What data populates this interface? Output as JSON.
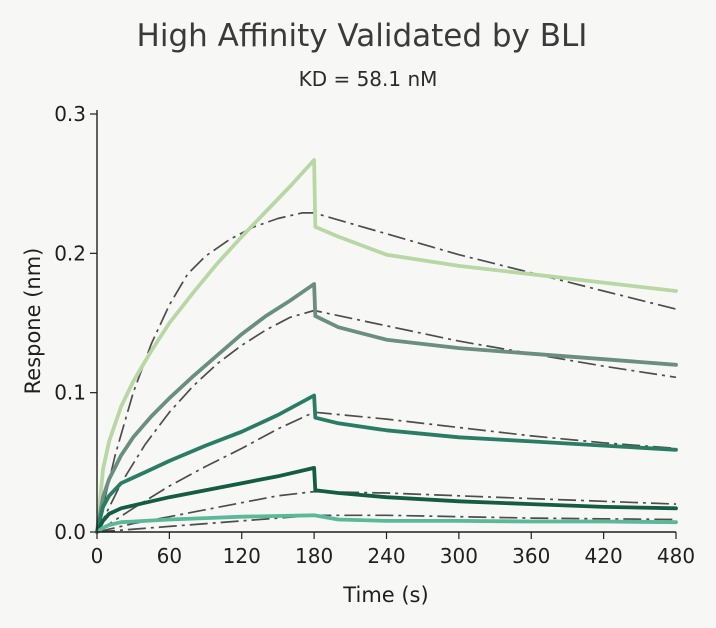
{
  "chart_data": {
    "type": "line",
    "title": "High Affinity Validated by BLI",
    "subtitle": "KD = 58.1 nM",
    "xlabel": "Time (s)",
    "ylabel": "Respone (nm)",
    "xlim": [
      0,
      480
    ],
    "ylim": [
      0,
      0.3
    ],
    "xticks": [
      0,
      60,
      120,
      180,
      240,
      300,
      360,
      420,
      480
    ],
    "yticks": [
      0.0,
      0.1,
      0.2,
      0.3
    ],
    "ytick_labels": [
      "0.0",
      "0.1",
      "0.2",
      "0.3"
    ],
    "association_end": 180,
    "grid": false,
    "series": [
      {
        "name": "curve-1",
        "color": "#b9d7a4",
        "x": [
          0,
          5,
          10,
          20,
          30,
          45,
          60,
          80,
          100,
          120,
          140,
          160,
          180,
          181,
          200,
          240,
          300,
          360,
          420,
          480
        ],
        "values": [
          0,
          0.045,
          0.065,
          0.09,
          0.108,
          0.13,
          0.15,
          0.172,
          0.193,
          0.212,
          0.23,
          0.248,
          0.267,
          0.219,
          0.212,
          0.199,
          0.191,
          0.185,
          0.179,
          0.173
        ]
      },
      {
        "name": "curve-2",
        "color": "#6a8e80",
        "x": [
          0,
          5,
          10,
          20,
          30,
          45,
          60,
          80,
          100,
          120,
          140,
          160,
          180,
          181,
          200,
          240,
          300,
          360,
          420,
          480
        ],
        "values": [
          0,
          0.025,
          0.038,
          0.055,
          0.068,
          0.083,
          0.096,
          0.112,
          0.127,
          0.142,
          0.155,
          0.166,
          0.178,
          0.155,
          0.147,
          0.138,
          0.132,
          0.128,
          0.124,
          0.12
        ]
      },
      {
        "name": "curve-3",
        "color": "#2a7d64",
        "x": [
          0,
          5,
          10,
          20,
          40,
          60,
          90,
          120,
          150,
          180,
          181,
          200,
          240,
          300,
          360,
          420,
          480
        ],
        "values": [
          0,
          0.018,
          0.026,
          0.035,
          0.043,
          0.051,
          0.062,
          0.072,
          0.084,
          0.098,
          0.082,
          0.078,
          0.073,
          0.068,
          0.065,
          0.062,
          0.059
        ]
      },
      {
        "name": "curve-4",
        "color": "#155c45",
        "x": [
          0,
          5,
          10,
          20,
          40,
          60,
          90,
          120,
          150,
          180,
          181,
          200,
          240,
          300,
          360,
          420,
          480
        ],
        "values": [
          0,
          0.008,
          0.013,
          0.017,
          0.021,
          0.025,
          0.03,
          0.035,
          0.04,
          0.046,
          0.03,
          0.028,
          0.025,
          0.022,
          0.02,
          0.018,
          0.017
        ]
      },
      {
        "name": "curve-5",
        "color": "#5cb89a",
        "x": [
          0,
          5,
          10,
          20,
          40,
          60,
          90,
          120,
          150,
          180,
          200,
          240,
          300,
          360,
          420,
          480
        ],
        "values": [
          0,
          0.003,
          0.005,
          0.007,
          0.008,
          0.009,
          0.01,
          0.011,
          0.0115,
          0.012,
          0.009,
          0.008,
          0.008,
          0.0075,
          0.0075,
          0.007
        ]
      }
    ],
    "fit_series": [
      {
        "name": "fit-1",
        "color": "#4d4d4d",
        "x": [
          0,
          15,
          30,
          45,
          60,
          75,
          90,
          110,
          130,
          150,
          170,
          180,
          240,
          300,
          360,
          420,
          480
        ],
        "values": [
          0,
          0.055,
          0.1,
          0.135,
          0.163,
          0.185,
          0.198,
          0.21,
          0.219,
          0.225,
          0.229,
          0.229,
          0.214,
          0.199,
          0.186,
          0.173,
          0.16
        ]
      },
      {
        "name": "fit-2",
        "color": "#4d4d4d",
        "x": [
          0,
          20,
          40,
          60,
          80,
          100,
          120,
          140,
          160,
          180,
          240,
          300,
          360,
          420,
          480
        ],
        "values": [
          0,
          0.035,
          0.063,
          0.086,
          0.105,
          0.121,
          0.134,
          0.145,
          0.154,
          0.159,
          0.148,
          0.137,
          0.128,
          0.119,
          0.111
        ]
      },
      {
        "name": "fit-3",
        "color": "#4d4d4d",
        "x": [
          0,
          30,
          60,
          90,
          120,
          150,
          180,
          240,
          300,
          360,
          420,
          480
        ],
        "values": [
          0,
          0.017,
          0.033,
          0.047,
          0.06,
          0.074,
          0.086,
          0.081,
          0.075,
          0.069,
          0.064,
          0.06
        ]
      },
      {
        "name": "fit-4",
        "color": "#4d4d4d",
        "x": [
          0,
          30,
          60,
          90,
          120,
          150,
          180,
          240,
          300,
          360,
          420,
          480
        ],
        "values": [
          0,
          0.006,
          0.011,
          0.016,
          0.021,
          0.026,
          0.029,
          0.028,
          0.026,
          0.024,
          0.022,
          0.02
        ]
      },
      {
        "name": "fit-5",
        "color": "#4d4d4d",
        "x": [
          0,
          60,
          120,
          180,
          240,
          300,
          360,
          420,
          480
        ],
        "values": [
          0,
          0.004,
          0.008,
          0.012,
          0.012,
          0.011,
          0.01,
          0.0095,
          0.009
        ]
      }
    ]
  }
}
